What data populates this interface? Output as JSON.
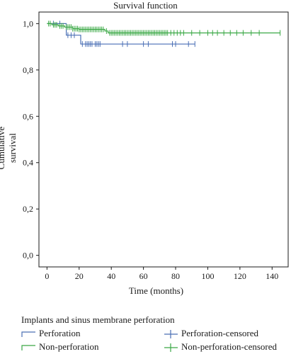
{
  "chart_data": {
    "type": "line",
    "title": "Survival function",
    "xlabel": "Time (months)",
    "ylabel": "Cumulative survival",
    "xlim": [
      -5,
      150
    ],
    "ylim": [
      -0.05,
      1.05
    ],
    "x_ticks": [
      0,
      20,
      40,
      60,
      80,
      100,
      120,
      140
    ],
    "y_ticks": [
      0.0,
      0.2,
      0.4,
      0.6,
      0.8,
      1.0
    ],
    "y_tick_labels": [
      "0,0",
      "0,2",
      "0,4",
      "0,6",
      "0,8",
      "1,0"
    ],
    "legend_title": "Implants and sinus membrane perforation",
    "legend_position": "bottom",
    "series": [
      {
        "name": "Perforation",
        "color": "#4a6fb5",
        "steps": [
          [
            0,
            1.0
          ],
          [
            12,
            1.0
          ],
          [
            12,
            0.95
          ],
          [
            21,
            0.95
          ],
          [
            21,
            0.912
          ],
          [
            92,
            0.912
          ]
        ],
        "censored": [
          4,
          8,
          13,
          15,
          17,
          22,
          24,
          25,
          26,
          27,
          28,
          30,
          31,
          32,
          33,
          47,
          50,
          60,
          63,
          78,
          80,
          88,
          92
        ]
      },
      {
        "name": "Non-perforation",
        "color": "#3aa845",
        "steps": [
          [
            0,
            1.0
          ],
          [
            3,
            1.0
          ],
          [
            3,
            0.995
          ],
          [
            7,
            0.995
          ],
          [
            7,
            0.99
          ],
          [
            11,
            0.99
          ],
          [
            11,
            0.985
          ],
          [
            16,
            0.985
          ],
          [
            16,
            0.978
          ],
          [
            20,
            0.978
          ],
          [
            20,
            0.975
          ],
          [
            36,
            0.975
          ],
          [
            36,
            0.968
          ],
          [
            38,
            0.968
          ],
          [
            38,
            0.96
          ],
          [
            145,
            0.96
          ]
        ],
        "censored": [
          1,
          2,
          4,
          5,
          6,
          8,
          9,
          10,
          12,
          13,
          14,
          15,
          16,
          17,
          18,
          19,
          20,
          21,
          22,
          23,
          24,
          25,
          26,
          27,
          28,
          29,
          30,
          31,
          32,
          33,
          34,
          35,
          37,
          39,
          40,
          41,
          42,
          43,
          44,
          45,
          46,
          47,
          48,
          49,
          50,
          51,
          52,
          53,
          54,
          55,
          56,
          57,
          58,
          59,
          60,
          61,
          62,
          63,
          64,
          65,
          66,
          67,
          68,
          69,
          70,
          71,
          72,
          73,
          74,
          75,
          77,
          79,
          81,
          83,
          85,
          90,
          95,
          100,
          103,
          106,
          110,
          114,
          118,
          122,
          127,
          132,
          145
        ]
      }
    ]
  },
  "legend": {
    "title": "Implants and sinus membrane perforation",
    "items": [
      {
        "label": "Perforation",
        "color": "#4a6fb5",
        "kind": "step"
      },
      {
        "label": "Perforation-censored",
        "color": "#4a6fb5",
        "kind": "censor"
      },
      {
        "label": "Non-perforation",
        "color": "#3aa845",
        "kind": "step"
      },
      {
        "label": "Non-perforation-censored",
        "color": "#3aa845",
        "kind": "censor"
      }
    ]
  }
}
